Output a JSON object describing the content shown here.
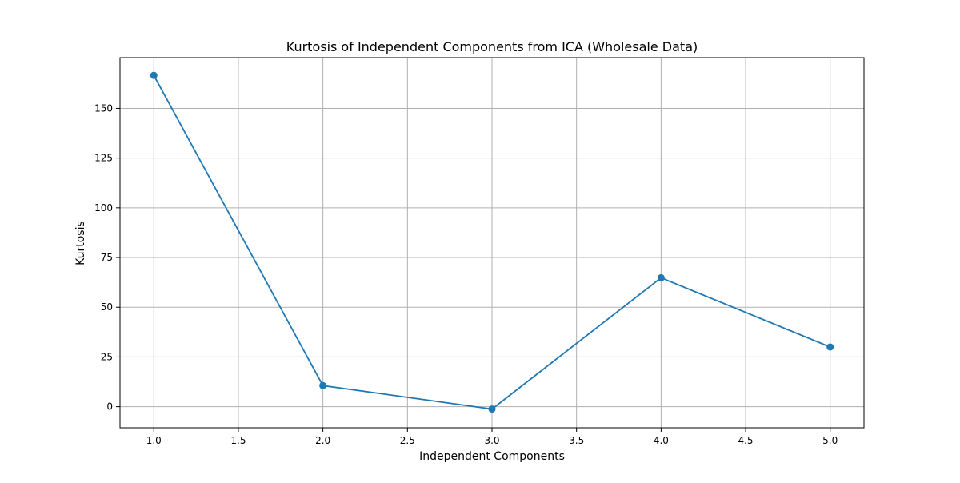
{
  "chart_data": {
    "type": "line",
    "title": "Kurtosis of Independent Components from ICA (Wholesale Data)",
    "xlabel": "Independent Components",
    "ylabel": "Kurtosis",
    "x": [
      1,
      2,
      3,
      4,
      5
    ],
    "series": [
      {
        "values": [
          166.6,
          10.6,
          -1.2,
          64.8,
          30.0
        ]
      }
    ],
    "xlim": [
      0.8,
      5.2
    ],
    "ylim": [
      -10.6,
      175.5
    ],
    "xticks": [
      1.0,
      1.5,
      2.0,
      2.5,
      3.0,
      3.5,
      4.0,
      4.5,
      5.0
    ],
    "xtick_labels": [
      "1.0",
      "1.5",
      "2.0",
      "2.5",
      "3.0",
      "3.5",
      "4.0",
      "4.5",
      "5.0"
    ],
    "yticks": [
      0,
      25,
      50,
      75,
      100,
      125,
      150
    ],
    "ytick_labels": [
      "0",
      "25",
      "50",
      "75",
      "100",
      "125",
      "150"
    ],
    "grid": true,
    "line_color": "#1f77b4",
    "marker": "circle"
  }
}
